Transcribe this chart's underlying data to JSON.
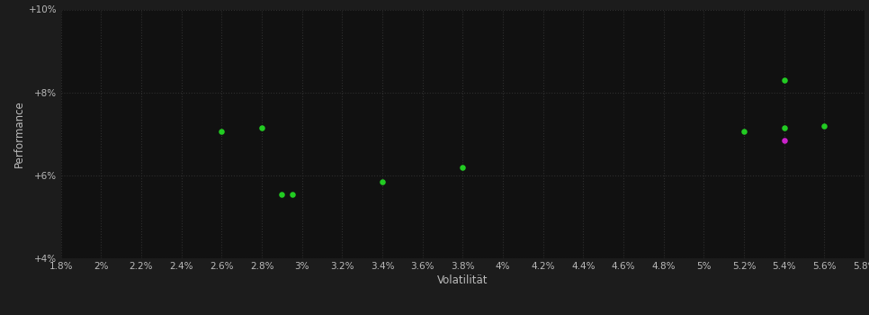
{
  "background_color": "#1c1c1c",
  "plot_bg_color": "#111111",
  "grid_color": "#2e2e2e",
  "xlabel": "Volatilität",
  "ylabel": "Performance",
  "xlim": [
    0.018,
    0.058
  ],
  "ylim": [
    0.04,
    0.1
  ],
  "xticks": [
    0.018,
    0.02,
    0.022,
    0.024,
    0.026,
    0.028,
    0.03,
    0.032,
    0.034,
    0.036,
    0.038,
    0.04,
    0.042,
    0.044,
    0.046,
    0.048,
    0.05,
    0.052,
    0.054,
    0.056,
    0.058
  ],
  "yticks": [
    0.04,
    0.06,
    0.08,
    0.1
  ],
  "ytick_labels": [
    "+4%",
    "+6%",
    "+8%",
    "+10%"
  ],
  "xtick_labels": [
    "1.8%",
    "2%",
    "2.2%",
    "2.4%",
    "2.6%",
    "2.8%",
    "3%",
    "3.2%",
    "3.4%",
    "3.6%",
    "3.8%",
    "4%",
    "4.2%",
    "4.4%",
    "4.6%",
    "4.8%",
    "5%",
    "5.2%",
    "5.4%",
    "5.6%",
    "5.8%"
  ],
  "green_points": [
    [
      0.026,
      0.0705
    ],
    [
      0.028,
      0.0715
    ],
    [
      0.029,
      0.0555
    ],
    [
      0.0295,
      0.0555
    ],
    [
      0.034,
      0.0585
    ],
    [
      0.038,
      0.062
    ],
    [
      0.052,
      0.0705
    ],
    [
      0.054,
      0.0715
    ],
    [
      0.056,
      0.072
    ],
    [
      0.054,
      0.083
    ]
  ],
  "magenta_points": [
    [
      0.054,
      0.0685
    ]
  ],
  "point_size": 22,
  "green_color": "#22cc22",
  "magenta_color": "#cc22cc",
  "text_color": "#bbbbbb",
  "tick_fontsize": 7.5,
  "label_fontsize": 8.5
}
